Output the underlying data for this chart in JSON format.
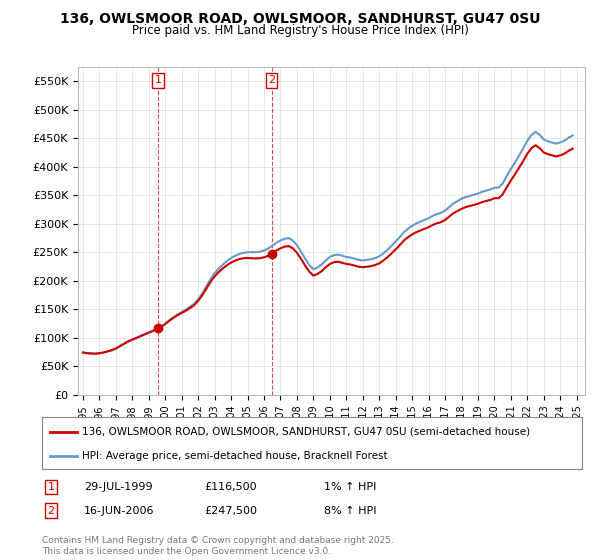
{
  "title": "136, OWLSMOOR ROAD, OWLSMOOR, SANDHURST, GU47 0SU",
  "subtitle": "Price paid vs. HM Land Registry's House Price Index (HPI)",
  "ylabel_ticks": [
    "£0",
    "£50K",
    "£100K",
    "£150K",
    "£200K",
    "£250K",
    "£300K",
    "£350K",
    "£400K",
    "£450K",
    "£500K",
    "£550K"
  ],
  "ytick_values": [
    0,
    50000,
    100000,
    150000,
    200000,
    250000,
    300000,
    350000,
    400000,
    450000,
    500000,
    550000
  ],
  "ylim": [
    0,
    575000
  ],
  "sale1_date": 1999.57,
  "sale1_price": 116500,
  "sale1_label": "1",
  "sale2_date": 2006.46,
  "sale2_price": 247500,
  "sale2_label": "2",
  "legend_line1": "136, OWLSMOOR ROAD, OWLSMOOR, SANDHURST, GU47 0SU (semi-detached house)",
  "legend_line2": "HPI: Average price, semi-detached house, Bracknell Forest",
  "footer": "Contains HM Land Registry data © Crown copyright and database right 2025.\nThis data is licensed under the Open Government Licence v3.0.",
  "line_color_red": "#cc0000",
  "line_color_blue": "#6699cc",
  "background_color": "#ffffff",
  "grid_color": "#dddddd",
  "hpi_dates": [
    1995.0,
    1995.25,
    1995.5,
    1995.75,
    1996.0,
    1996.25,
    1996.5,
    1996.75,
    1997.0,
    1997.25,
    1997.5,
    1997.75,
    1998.0,
    1998.25,
    1998.5,
    1998.75,
    1999.0,
    1999.25,
    1999.5,
    1999.75,
    2000.0,
    2000.25,
    2000.5,
    2000.75,
    2001.0,
    2001.25,
    2001.5,
    2001.75,
    2002.0,
    2002.25,
    2002.5,
    2002.75,
    2003.0,
    2003.25,
    2003.5,
    2003.75,
    2004.0,
    2004.25,
    2004.5,
    2004.75,
    2005.0,
    2005.25,
    2005.5,
    2005.75,
    2006.0,
    2006.25,
    2006.5,
    2006.75,
    2007.0,
    2007.25,
    2007.5,
    2007.75,
    2008.0,
    2008.25,
    2008.5,
    2008.75,
    2009.0,
    2009.25,
    2009.5,
    2009.75,
    2010.0,
    2010.25,
    2010.5,
    2010.75,
    2011.0,
    2011.25,
    2011.5,
    2011.75,
    2012.0,
    2012.25,
    2012.5,
    2012.75,
    2013.0,
    2013.25,
    2013.5,
    2013.75,
    2014.0,
    2014.25,
    2014.5,
    2014.75,
    2015.0,
    2015.25,
    2015.5,
    2015.75,
    2016.0,
    2016.25,
    2016.5,
    2016.75,
    2017.0,
    2017.25,
    2017.5,
    2017.75,
    2018.0,
    2018.25,
    2018.5,
    2018.75,
    2019.0,
    2019.25,
    2019.5,
    2019.75,
    2020.0,
    2020.25,
    2020.5,
    2020.75,
    2021.0,
    2021.25,
    2021.5,
    2021.75,
    2022.0,
    2022.25,
    2022.5,
    2022.75,
    2023.0,
    2023.25,
    2023.5,
    2023.75,
    2024.0,
    2024.25,
    2024.5,
    2024.75
  ],
  "hpi_vals": [
    72000,
    71000,
    70500,
    70000,
    71000,
    72000,
    74000,
    76000,
    79000,
    83000,
    87000,
    91000,
    94000,
    97000,
    100000,
    103000,
    106000,
    109000,
    112000,
    116000,
    121000,
    127000,
    132000,
    137000,
    141000,
    145000,
    150000,
    155000,
    163000,
    173000,
    185000,
    197000,
    207000,
    215000,
    222000,
    228000,
    233000,
    237000,
    240000,
    242000,
    243000,
    243000,
    243000,
    244000,
    246000,
    249000,
    254000,
    259000,
    263000,
    266000,
    267000,
    263000,
    255000,
    244000,
    232000,
    221000,
    214000,
    217000,
    222000,
    229000,
    235000,
    238000,
    239000,
    237000,
    235000,
    234000,
    232000,
    230000,
    229000,
    230000,
    231000,
    233000,
    236000,
    241000,
    247000,
    254000,
    261000,
    269000,
    277000,
    283000,
    288000,
    292000,
    295000,
    298000,
    301000,
    305000,
    308000,
    310000,
    314000,
    320000,
    326000,
    330000,
    334000,
    337000,
    339000,
    341000,
    343000,
    346000,
    348000,
    350000,
    353000,
    353000,
    360000,
    373000,
    385000,
    396000,
    408000,
    420000,
    433000,
    443000,
    448000,
    443000,
    435000,
    432000,
    430000,
    428000,
    430000,
    433000,
    438000,
    442000
  ]
}
